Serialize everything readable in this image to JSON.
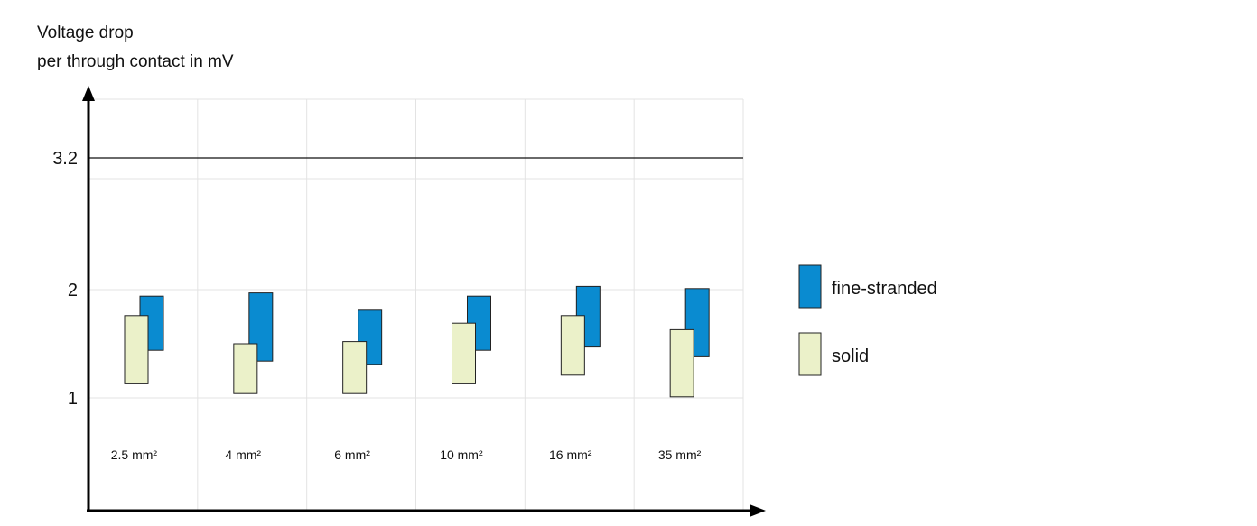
{
  "chart_data": {
    "type": "bar",
    "subtype": "floating-range",
    "ylabel_lines": [
      "Voltage drop",
      "per through contact in mV"
    ],
    "yticks": [
      1,
      2,
      3.2
    ],
    "ytick_labels": [
      "1",
      "2",
      "3.2"
    ],
    "reference_line": 3.2,
    "categories": [
      "2.5 mm²",
      "4 mm²",
      "6 mm²",
      "10 mm²",
      "16 mm²",
      "35 mm²"
    ],
    "series": [
      {
        "name": "fine-stranded",
        "color": "#0a8bd0",
        "ranges": [
          [
            1.44,
            1.94
          ],
          [
            1.34,
            1.97
          ],
          [
            1.31,
            1.81
          ],
          [
            1.44,
            1.94
          ],
          [
            1.47,
            2.03
          ],
          [
            1.38,
            2.01
          ]
        ]
      },
      {
        "name": "solid",
        "color": "#ebf1c9",
        "ranges": [
          [
            1.13,
            1.76
          ],
          [
            1.04,
            1.5
          ],
          [
            1.04,
            1.52
          ],
          [
            1.13,
            1.69
          ],
          [
            1.21,
            1.76
          ],
          [
            1.01,
            1.63
          ]
        ]
      }
    ],
    "grid": true,
    "legend_position": "right"
  }
}
